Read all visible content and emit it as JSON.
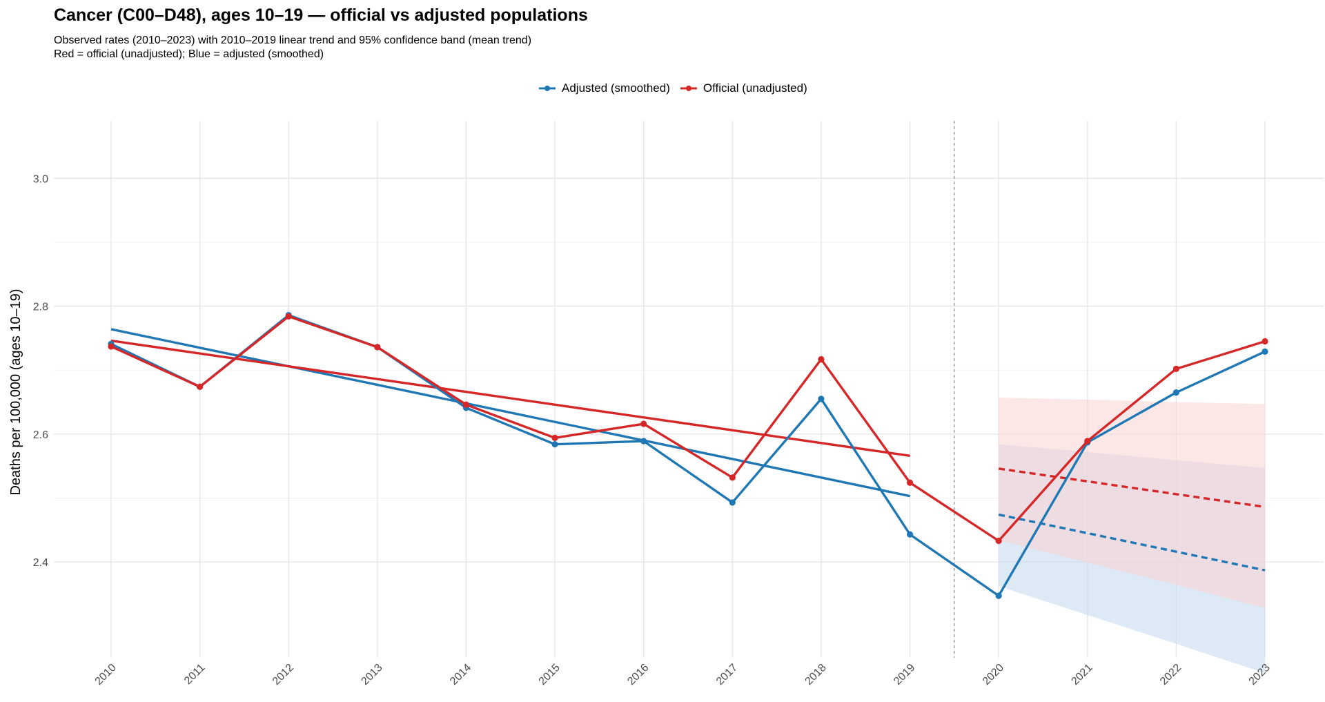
{
  "chart_data": {
    "type": "line",
    "title": "Cancer (C00–D48), ages 10–19 — official vs adjusted populations",
    "subtitle_lines": [
      "Observed rates (2010–2023) with 2010–2019 linear trend and 95% confidence band (mean trend)",
      "Red = official (unadjusted); Blue = adjusted (smoothed)"
    ],
    "xlabel": "",
    "ylabel": "Deaths per 100,000 (ages 10–19)",
    "x": [
      2010,
      2011,
      2012,
      2013,
      2014,
      2015,
      2016,
      2017,
      2018,
      2019,
      2020,
      2021,
      2022,
      2023
    ],
    "ylim": [
      2.25,
      3.09
    ],
    "yticks": [
      2.4,
      2.6,
      2.8,
      3.0
    ],
    "ytick_labels": [
      "2.4",
      "2.6",
      "2.8",
      "3.0"
    ],
    "xtick_labels": [
      "2010",
      "2011",
      "2012",
      "2013",
      "2014",
      "2015",
      "2016",
      "2017",
      "2018",
      "2019",
      "2020",
      "2021",
      "2022",
      "2023"
    ],
    "grid": true,
    "legend_position": "top",
    "vline_x": 2019.5,
    "series": [
      {
        "name": "Adjusted (smoothed)",
        "color": "#1f77b4",
        "band_color": "#c6dbef",
        "values": [
          2.741,
          2.674,
          2.786,
          2.736,
          2.641,
          2.584,
          2.589,
          2.493,
          2.655,
          2.443,
          2.347,
          2.587,
          2.665,
          2.729
        ],
        "trend_fit": {
          "x": [
            2010,
            2019
          ],
          "y": [
            2.764,
            2.503
          ]
        },
        "trend_projection": {
          "x": [
            2020,
            2021,
            2022,
            2023
          ],
          "y": [
            2.474,
            2.445,
            2.416,
            2.387
          ]
        },
        "band_lower": [
          2.362,
          2.317,
          2.272,
          2.226
        ],
        "band_upper": [
          2.584,
          2.572,
          2.559,
          2.547
        ]
      },
      {
        "name": "Official (unadjusted)",
        "color": "#d62728",
        "band_color": "#f9d3d3",
        "values": [
          2.737,
          2.674,
          2.784,
          2.736,
          2.646,
          2.594,
          2.616,
          2.532,
          2.717,
          2.524,
          2.433,
          2.589,
          2.702,
          2.745
        ],
        "trend_fit": {
          "x": [
            2010,
            2019
          ],
          "y": [
            2.746,
            2.566
          ]
        },
        "trend_projection": {
          "x": [
            2020,
            2021,
            2022,
            2023
          ],
          "y": [
            2.546,
            2.526,
            2.506,
            2.486
          ]
        },
        "band_lower": [
          2.434,
          2.399,
          2.364,
          2.328
        ],
        "band_upper": [
          2.657,
          2.654,
          2.65,
          2.647
        ]
      }
    ]
  }
}
